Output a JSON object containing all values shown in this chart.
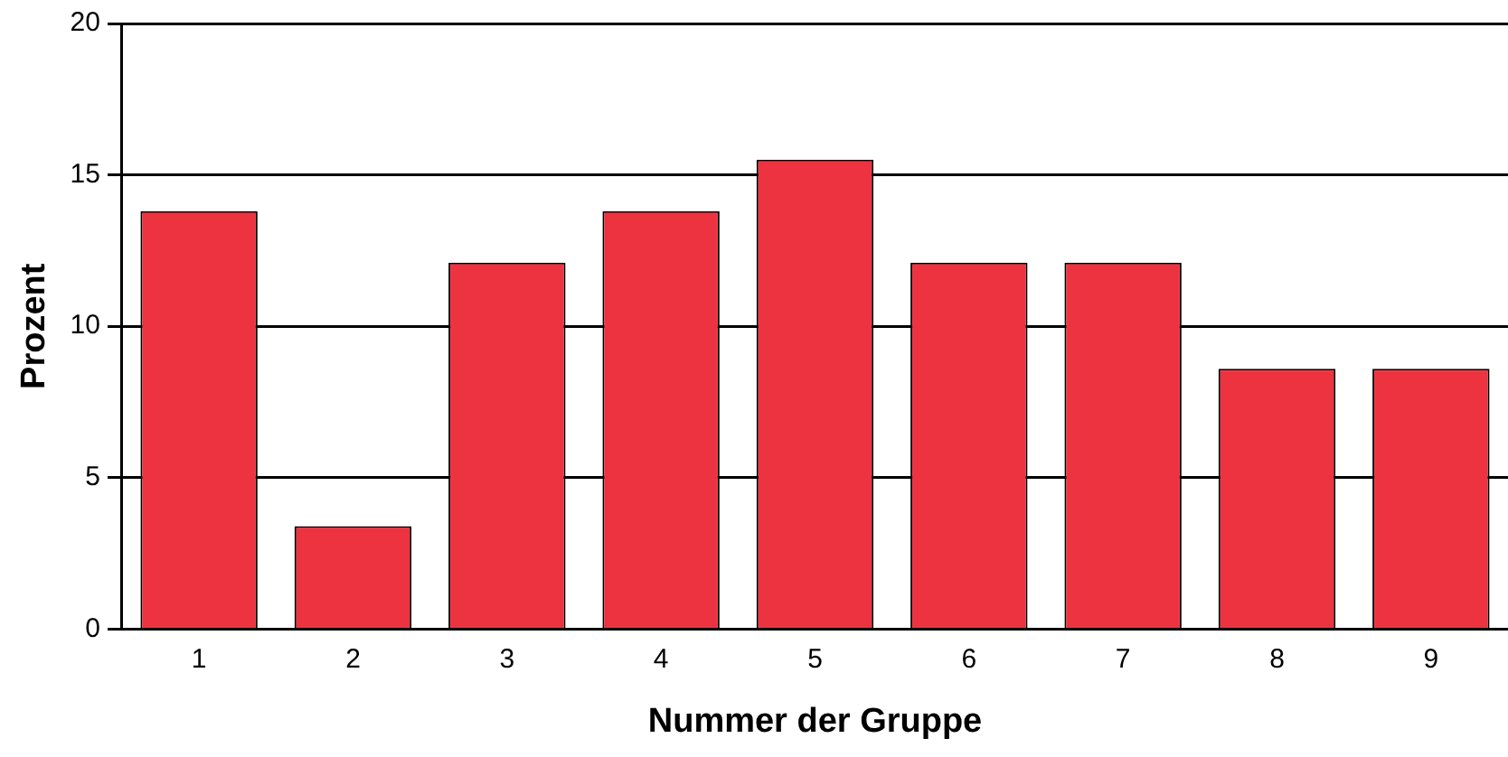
{
  "chart_data": {
    "type": "bar",
    "xlabel": "Nummer der Gruppe",
    "ylabel": "Prozent",
    "categories": [
      "1",
      "2",
      "3",
      "4",
      "5",
      "6",
      "7",
      "8",
      "9"
    ],
    "values": [
      13.8,
      3.4,
      12.1,
      13.8,
      15.5,
      12.1,
      12.1,
      8.6,
      8.6
    ],
    "color": "#ee3340",
    "ylim": [
      0,
      20
    ],
    "yticks": [
      0,
      5,
      10,
      15,
      20
    ],
    "grid": "y",
    "legend": false
  }
}
